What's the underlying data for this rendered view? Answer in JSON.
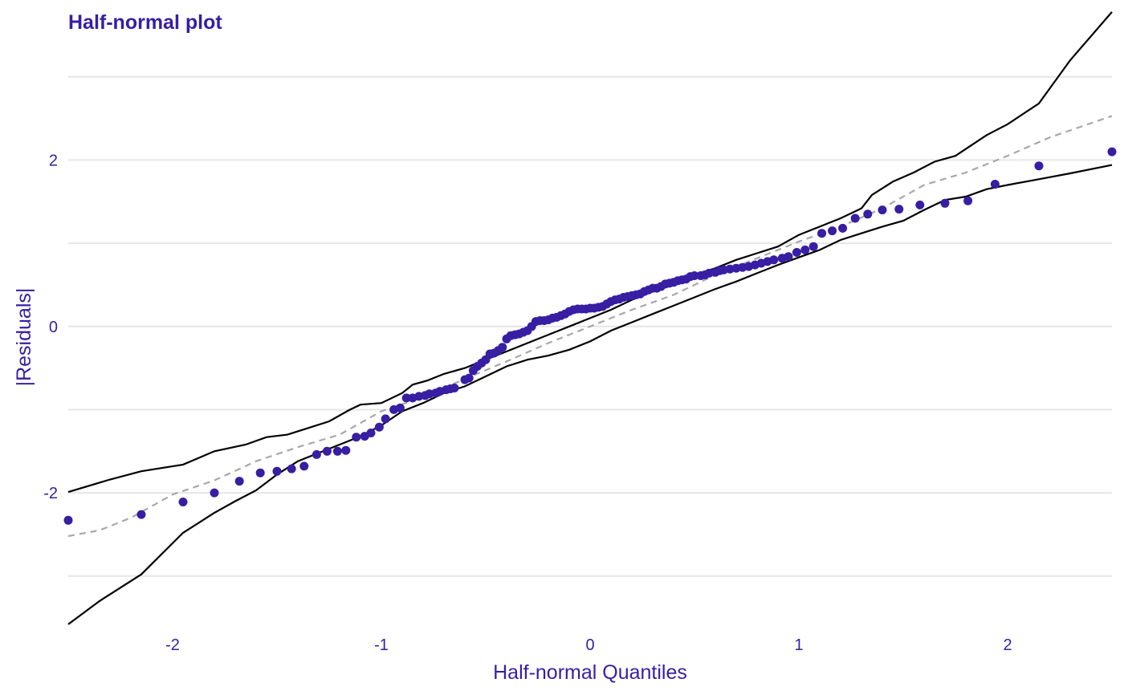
{
  "chart_data": {
    "type": "scatter",
    "title": "Half-normal plot",
    "xlabel": "Half-normal Quantiles",
    "ylabel": "|Residuals|",
    "xlim": [
      -2.5,
      2.5
    ],
    "ylim": [
      -3.6,
      3.75
    ],
    "x_ticks": [
      {
        "value": -2,
        "label": "-2"
      },
      {
        "value": -1,
        "label": "-1"
      },
      {
        "value": 0,
        "label": "0"
      },
      {
        "value": 1,
        "label": "1"
      },
      {
        "value": 2,
        "label": "2"
      }
    ],
    "y_ticks": [
      {
        "value": -2,
        "label": "-2"
      },
      {
        "value": 0,
        "label": "0"
      },
      {
        "value": 2,
        "label": "2"
      }
    ],
    "y_minor_gridlines": [
      -3,
      -1,
      1,
      3
    ],
    "grid": "horizontal",
    "colors": {
      "text": "#371ea3",
      "points": "#371ea3",
      "envelope": "#000000",
      "reference": "#a8a8a8",
      "grid": "#e6e6e6"
    },
    "points": [
      [
        -2.5,
        -2.33
      ],
      [
        -2.15,
        -2.26
      ],
      [
        -1.95,
        -2.11
      ],
      [
        -1.8,
        -2.0
      ],
      [
        -1.68,
        -1.86
      ],
      [
        -1.58,
        -1.76
      ],
      [
        -1.5,
        -1.74
      ],
      [
        -1.43,
        -1.71
      ],
      [
        -1.37,
        -1.68
      ],
      [
        -1.31,
        -1.54
      ],
      [
        -1.26,
        -1.5
      ],
      [
        -1.21,
        -1.5
      ],
      [
        -1.17,
        -1.49
      ],
      [
        -1.12,
        -1.33
      ],
      [
        -1.08,
        -1.32
      ],
      [
        -1.05,
        -1.28
      ],
      [
        -1.01,
        -1.21
      ],
      [
        -0.98,
        -1.11
      ],
      [
        -0.94,
        -1.0
      ],
      [
        -0.91,
        -0.98
      ],
      [
        -0.88,
        -0.86
      ],
      [
        -0.85,
        -0.86
      ],
      [
        -0.82,
        -0.84
      ],
      [
        -0.79,
        -0.83
      ],
      [
        -0.77,
        -0.81
      ],
      [
        -0.74,
        -0.8
      ],
      [
        -0.72,
        -0.78
      ],
      [
        -0.69,
        -0.76
      ],
      [
        -0.67,
        -0.75
      ],
      [
        -0.65,
        -0.74
      ],
      [
        -0.6,
        -0.64
      ],
      [
        -0.58,
        -0.62
      ],
      [
        -0.56,
        -0.53
      ],
      [
        -0.54,
        -0.48
      ],
      [
        -0.52,
        -0.44
      ],
      [
        -0.5,
        -0.4
      ],
      [
        -0.48,
        -0.33
      ],
      [
        -0.46,
        -0.32
      ],
      [
        -0.44,
        -0.29
      ],
      [
        -0.42,
        -0.25
      ],
      [
        -0.4,
        -0.15
      ],
      [
        -0.38,
        -0.11
      ],
      [
        -0.36,
        -0.1
      ],
      [
        -0.34,
        -0.09
      ],
      [
        -0.32,
        -0.07
      ],
      [
        -0.3,
        -0.05
      ],
      [
        -0.28,
        0.0
      ],
      [
        -0.26,
        0.06
      ],
      [
        -0.24,
        0.07
      ],
      [
        -0.22,
        0.07
      ],
      [
        -0.2,
        0.08
      ],
      [
        -0.18,
        0.1
      ],
      [
        -0.16,
        0.11
      ],
      [
        -0.14,
        0.13
      ],
      [
        -0.12,
        0.15
      ],
      [
        -0.1,
        0.18
      ],
      [
        -0.08,
        0.2
      ],
      [
        -0.06,
        0.21
      ],
      [
        -0.04,
        0.21
      ],
      [
        -0.02,
        0.21
      ],
      [
        0.0,
        0.22
      ],
      [
        0.02,
        0.22
      ],
      [
        0.04,
        0.23
      ],
      [
        0.06,
        0.24
      ],
      [
        0.08,
        0.27
      ],
      [
        0.1,
        0.3
      ],
      [
        0.12,
        0.32
      ],
      [
        0.14,
        0.33
      ],
      [
        0.16,
        0.35
      ],
      [
        0.18,
        0.36
      ],
      [
        0.2,
        0.37
      ],
      [
        0.22,
        0.38
      ],
      [
        0.24,
        0.39
      ],
      [
        0.26,
        0.42
      ],
      [
        0.28,
        0.44
      ],
      [
        0.3,
        0.46
      ],
      [
        0.32,
        0.46
      ],
      [
        0.34,
        0.48
      ],
      [
        0.36,
        0.51
      ],
      [
        0.38,
        0.52
      ],
      [
        0.4,
        0.53
      ],
      [
        0.42,
        0.55
      ],
      [
        0.44,
        0.56
      ],
      [
        0.46,
        0.57
      ],
      [
        0.48,
        0.6
      ],
      [
        0.5,
        0.61
      ],
      [
        0.53,
        0.61
      ],
      [
        0.55,
        0.62
      ],
      [
        0.57,
        0.64
      ],
      [
        0.6,
        0.65
      ],
      [
        0.62,
        0.67
      ],
      [
        0.64,
        0.68
      ],
      [
        0.67,
        0.69
      ],
      [
        0.7,
        0.7
      ],
      [
        0.73,
        0.71
      ],
      [
        0.76,
        0.72
      ],
      [
        0.79,
        0.74
      ],
      [
        0.82,
        0.76
      ],
      [
        0.85,
        0.78
      ],
      [
        0.88,
        0.8
      ],
      [
        0.92,
        0.82
      ],
      [
        0.95,
        0.84
      ],
      [
        0.99,
        0.89
      ],
      [
        1.03,
        0.92
      ],
      [
        1.07,
        0.96
      ],
      [
        1.11,
        1.12
      ],
      [
        1.16,
        1.15
      ],
      [
        1.21,
        1.18
      ],
      [
        1.27,
        1.3
      ],
      [
        1.33,
        1.35
      ],
      [
        1.4,
        1.4
      ],
      [
        1.48,
        1.41
      ],
      [
        1.58,
        1.46
      ],
      [
        1.7,
        1.48
      ],
      [
        1.81,
        1.51
      ],
      [
        1.94,
        1.71
      ],
      [
        2.15,
        1.93
      ],
      [
        2.5,
        2.1
      ]
    ],
    "reference_line": [
      [
        -2.5,
        -2.52
      ],
      [
        -2.35,
        -2.45
      ],
      [
        -2.2,
        -2.3
      ],
      [
        -2.0,
        -2.02
      ],
      [
        -1.8,
        -1.85
      ],
      [
        -1.6,
        -1.62
      ],
      [
        -1.4,
        -1.45
      ],
      [
        -1.2,
        -1.3
      ],
      [
        -1.0,
        -1.02
      ],
      [
        -0.8,
        -0.85
      ],
      [
        -0.6,
        -0.63
      ],
      [
        -0.4,
        -0.42
      ],
      [
        -0.2,
        -0.2
      ],
      [
        0.0,
        0.0
      ],
      [
        0.2,
        0.2
      ],
      [
        0.4,
        0.38
      ],
      [
        0.6,
        0.62
      ],
      [
        0.8,
        0.82
      ],
      [
        1.0,
        1.02
      ],
      [
        1.2,
        1.2
      ],
      [
        1.4,
        1.42
      ],
      [
        1.6,
        1.7
      ],
      [
        1.8,
        1.85
      ],
      [
        2.0,
        2.05
      ],
      [
        2.2,
        2.27
      ],
      [
        2.35,
        2.4
      ],
      [
        2.5,
        2.53
      ]
    ],
    "envelope_upper": [
      [
        -2.5,
        -1.99
      ],
      [
        -2.3,
        -1.84
      ],
      [
        -2.15,
        -1.74
      ],
      [
        -1.95,
        -1.66
      ],
      [
        -1.8,
        -1.5
      ],
      [
        -1.65,
        -1.42
      ],
      [
        -1.55,
        -1.33
      ],
      [
        -1.45,
        -1.3
      ],
      [
        -1.35,
        -1.22
      ],
      [
        -1.25,
        -1.14
      ],
      [
        -1.15,
        -1.0
      ],
      [
        -1.1,
        -0.94
      ],
      [
        -1.0,
        -0.92
      ],
      [
        -0.9,
        -0.8
      ],
      [
        -0.85,
        -0.7
      ],
      [
        -0.78,
        -0.65
      ],
      [
        -0.7,
        -0.57
      ],
      [
        -0.6,
        -0.5
      ],
      [
        -0.5,
        -0.4
      ],
      [
        -0.4,
        -0.3
      ],
      [
        -0.3,
        -0.2
      ],
      [
        -0.2,
        -0.1
      ],
      [
        -0.1,
        0.0
      ],
      [
        0.0,
        0.1
      ],
      [
        0.1,
        0.2
      ],
      [
        0.2,
        0.32
      ],
      [
        0.3,
        0.42
      ],
      [
        0.4,
        0.5
      ],
      [
        0.5,
        0.62
      ],
      [
        0.6,
        0.7
      ],
      [
        0.7,
        0.8
      ],
      [
        0.8,
        0.88
      ],
      [
        0.9,
        0.96
      ],
      [
        1.0,
        1.1
      ],
      [
        1.1,
        1.2
      ],
      [
        1.2,
        1.3
      ],
      [
        1.3,
        1.42
      ],
      [
        1.35,
        1.58
      ],
      [
        1.45,
        1.74
      ],
      [
        1.55,
        1.85
      ],
      [
        1.65,
        1.98
      ],
      [
        1.75,
        2.05
      ],
      [
        1.9,
        2.3
      ],
      [
        2.0,
        2.43
      ],
      [
        2.15,
        2.68
      ],
      [
        2.3,
        3.2
      ],
      [
        2.5,
        3.78
      ]
    ],
    "envelope_lower": [
      [
        -2.5,
        -3.58
      ],
      [
        -2.35,
        -3.3
      ],
      [
        -2.15,
        -2.98
      ],
      [
        -1.95,
        -2.48
      ],
      [
        -1.8,
        -2.24
      ],
      [
        -1.7,
        -2.1
      ],
      [
        -1.6,
        -1.97
      ],
      [
        -1.5,
        -1.78
      ],
      [
        -1.4,
        -1.62
      ],
      [
        -1.3,
        -1.52
      ],
      [
        -1.2,
        -1.42
      ],
      [
        -1.1,
        -1.32
      ],
      [
        -1.0,
        -1.19
      ],
      [
        -0.9,
        -1.02
      ],
      [
        -0.8,
        -0.92
      ],
      [
        -0.7,
        -0.8
      ],
      [
        -0.6,
        -0.72
      ],
      [
        -0.5,
        -0.6
      ],
      [
        -0.4,
        -0.48
      ],
      [
        -0.3,
        -0.4
      ],
      [
        -0.2,
        -0.35
      ],
      [
        -0.1,
        -0.28
      ],
      [
        0.0,
        -0.18
      ],
      [
        0.1,
        -0.05
      ],
      [
        0.2,
        0.05
      ],
      [
        0.3,
        0.15
      ],
      [
        0.4,
        0.25
      ],
      [
        0.5,
        0.35
      ],
      [
        0.6,
        0.45
      ],
      [
        0.7,
        0.54
      ],
      [
        0.8,
        0.64
      ],
      [
        0.9,
        0.74
      ],
      [
        1.0,
        0.83
      ],
      [
        1.1,
        0.92
      ],
      [
        1.2,
        1.04
      ],
      [
        1.3,
        1.12
      ],
      [
        1.4,
        1.2
      ],
      [
        1.5,
        1.27
      ],
      [
        1.6,
        1.4
      ],
      [
        1.7,
        1.52
      ],
      [
        1.8,
        1.56
      ],
      [
        1.9,
        1.65
      ],
      [
        2.0,
        1.7
      ],
      [
        2.15,
        1.77
      ],
      [
        2.3,
        1.84
      ],
      [
        2.5,
        1.94
      ]
    ]
  }
}
